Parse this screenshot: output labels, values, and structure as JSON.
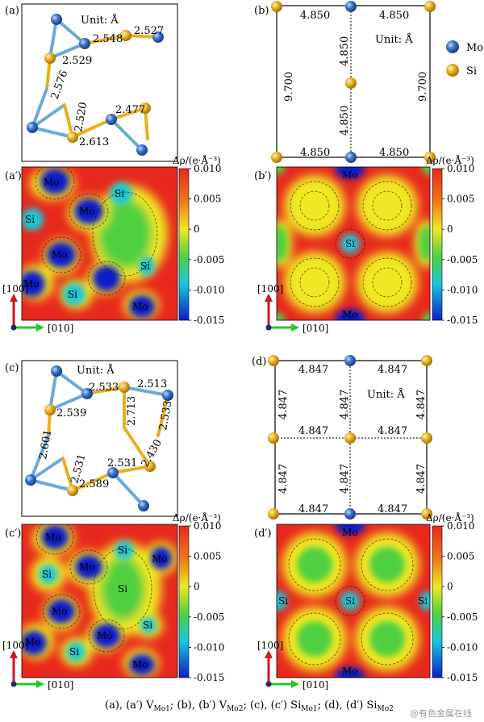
{
  "panels": {
    "a": {
      "label": "(a)",
      "unit": "Unit: Å",
      "bonds": [
        "2.527",
        "2.548",
        "2.529",
        "2.576",
        "2.520",
        "2.477",
        "2.613"
      ]
    },
    "b": {
      "label": "(b)",
      "unit": "Unit: Å",
      "top": [
        "4.850",
        "4.850"
      ],
      "bottom": [
        "4.850",
        "4.850"
      ],
      "mid_upper": "4.850",
      "mid_lower": "4.850",
      "left": "9.700",
      "right": "9.700"
    },
    "c": {
      "label": "(c)",
      "unit": "Unit: Å",
      "bonds": [
        "2.513",
        "2.533",
        "2.539",
        "2.713",
        "2.533",
        "2.601",
        "2.430",
        "2.531",
        "2.531",
        "2.589"
      ]
    },
    "d": {
      "label": "(d)",
      "unit": "Unit: Å",
      "top": [
        "4.847",
        "4.847"
      ],
      "middle": [
        "4.847",
        "4.847"
      ],
      "bottom": [
        "4.847",
        "4.847"
      ],
      "left": [
        "4.847",
        "4.847"
      ],
      "right": [
        "4.847",
        "4.847"
      ],
      "center_upper": "4.847",
      "center_lower": "4.847"
    },
    "a2": {
      "label": "(a′)",
      "atoms": [
        "Mo",
        "Si",
        "Mo",
        "Si",
        "Mo",
        "Si",
        "Mo",
        "Si",
        "Mo"
      ]
    },
    "b2": {
      "label": "(b′)",
      "atoms": [
        "Mo",
        "Si",
        "Mo"
      ]
    },
    "c2": {
      "label": "(c′)",
      "atoms": [
        "Mo",
        "Si",
        "Mo",
        "Si",
        "Mo",
        "Si",
        "Mo",
        "Mo",
        "Si",
        "Mo",
        "Si",
        "Mo"
      ]
    },
    "d2": {
      "label": "(d′)",
      "atoms": [
        "Mo",
        "Si",
        "Si",
        "Si",
        "Mo"
      ]
    }
  },
  "legend": {
    "mo": "Mo",
    "si": "Si"
  },
  "colorbar": {
    "title": "Δρ/(e·Å⁻³)",
    "ticks": [
      "0.010",
      "0.005",
      "0",
      "-0.005",
      "-0.010",
      "-0.015"
    ],
    "range": [
      -0.015,
      0.01
    ]
  },
  "axes": {
    "vertical": "[100]",
    "horizontal": "[010]"
  },
  "caption": {
    "p1": "(a), (a′) V",
    "s1": "Mo1",
    "p2": "; (b), (b′) V",
    "s2": "Mo2",
    "p3": "; (c), (c′) Si",
    "s3": "Mo1",
    "p4": "; (d), (d′) Si",
    "s4": "Mo2"
  },
  "watermark": "@有色金属在线",
  "colors": {
    "mo": "#3a72c8",
    "si": "#e8b020",
    "bond_mo": "#6aaad8",
    "bond_si": "#e8b020",
    "map_high": "#e8281e",
    "map_mid": "#50d040",
    "map_low": "#0a1ec8"
  }
}
